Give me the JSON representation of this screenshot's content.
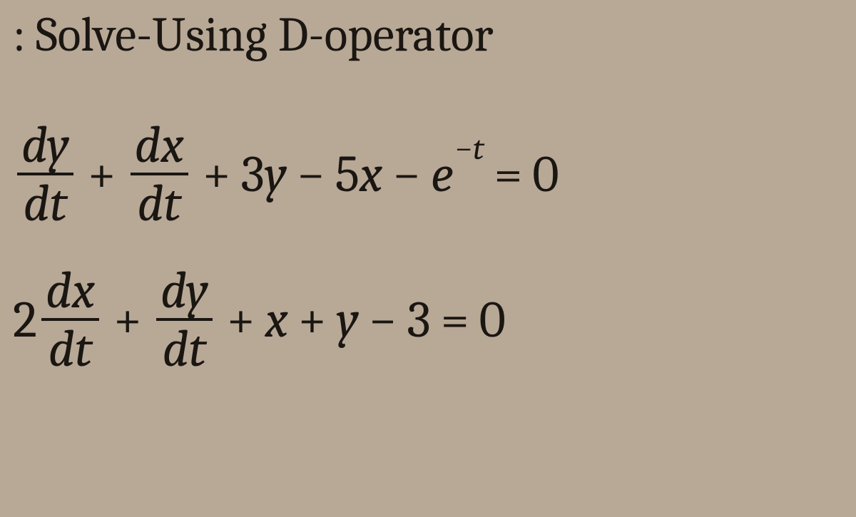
{
  "page": {
    "background_color": "#b8a896",
    "text_color": "#1a1612",
    "font_family": "Cambria, Georgia, Times New Roman, serif"
  },
  "title": {
    "colon": ":",
    "text": "Solve-Using D-operator",
    "fontsize": 68
  },
  "equations": {
    "fontsize": 72,
    "fraction_bar_height": 4,
    "superscript_fontsize": 46,
    "eq1": {
      "frac1": {
        "num": "dy",
        "den": "dt"
      },
      "op1": "+",
      "frac2": {
        "num": "dx",
        "den": "dt"
      },
      "op2": "+",
      "coef1": "3",
      "var1": "y",
      "op3": "−",
      "coef2": "5",
      "var2": "x",
      "op4": "−",
      "e": "e",
      "exp_sign": "−",
      "exp_var": "t",
      "eq": "=",
      "rhs": "0"
    },
    "eq2": {
      "lead_coef": "2",
      "frac1": {
        "num": "dx",
        "den": "dt"
      },
      "op1": "+",
      "frac2": {
        "num": "dy",
        "den": "dt"
      },
      "op2": "+",
      "var1": "x",
      "op3": "+",
      "var2": "y",
      "op4": "−",
      "const": "3",
      "eq": "=",
      "rhs": "0"
    }
  }
}
